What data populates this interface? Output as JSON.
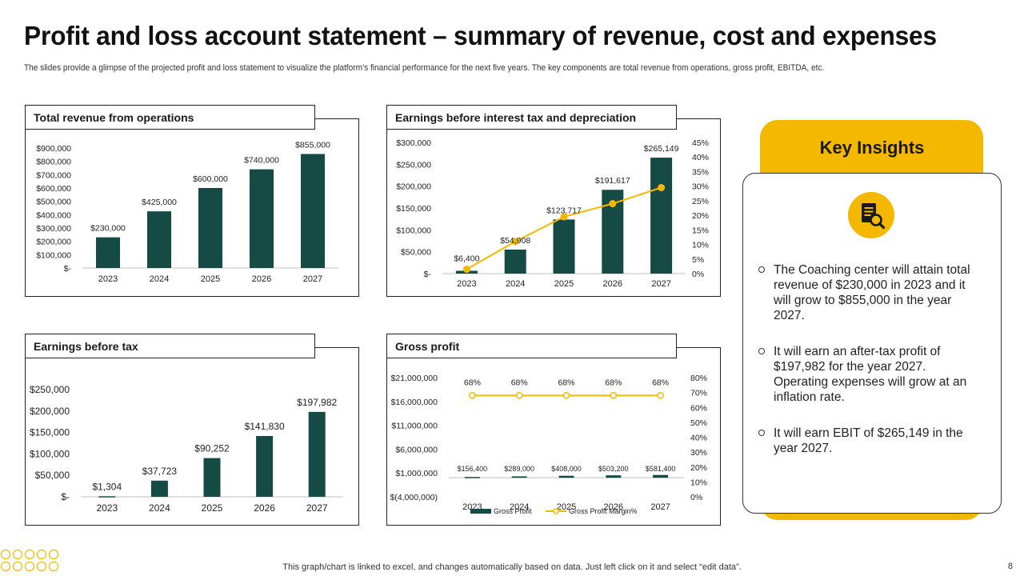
{
  "title": "Profit and loss account statement – summary of revenue, cost and expenses",
  "subtitle": "The slides provide a glimpse of the projected profit and loss statement to visualize the platform’s financial performance for the next five years. The key components are total revenue from operations, gross profit, EBITDA,  etc.",
  "colors": {
    "bar": "#154a45",
    "accent": "#f5b800",
    "line": "#f5b800",
    "axis": "#bfbfbf"
  },
  "chart_data": [
    {
      "id": "revenue",
      "type": "bar",
      "title": "Total revenue from operations",
      "categories": [
        "2023",
        "2024",
        "2025",
        "2026",
        "2027"
      ],
      "values": [
        230000,
        425000,
        600000,
        740000,
        855000
      ],
      "value_labels": [
        "$230,000",
        "$425,000",
        "$600,000",
        "$740,000",
        "$855,000"
      ],
      "ylim": [
        0,
        900000
      ],
      "y_ticks": [
        0,
        100000,
        200000,
        300000,
        400000,
        500000,
        600000,
        700000,
        800000,
        900000
      ],
      "y_tick_labels": [
        "$-",
        "$100,000",
        "$200,000",
        "$300,000",
        "$400,000",
        "$500,000",
        "$600,000",
        "$700,000",
        "$800,000",
        "$900,000"
      ]
    },
    {
      "id": "ebitda",
      "type": "bar+line",
      "title": "Earnings before interest tax and depreciation",
      "categories": [
        "2023",
        "2024",
        "2025",
        "2026",
        "2027"
      ],
      "values": [
        6400,
        54908,
        123717,
        191617,
        265149
      ],
      "value_labels": [
        "$6,400",
        "$54,908",
        "$123,717",
        "$191,617",
        "$265,149"
      ],
      "ylim": [
        0,
        300000
      ],
      "y_ticks": [
        0,
        50000,
        100000,
        150000,
        200000,
        250000,
        300000
      ],
      "y_tick_labels": [
        "$-",
        "$50,000",
        "$100,000",
        "$150,000",
        "$200,000",
        "$250,000",
        "$300,000"
      ],
      "margin_pct": [
        1.5,
        11,
        19.5,
        24,
        29.5
      ],
      "y2lim": [
        0,
        45
      ],
      "y2_ticks": [
        0,
        5,
        10,
        15,
        20,
        25,
        30,
        35,
        40,
        45
      ],
      "y2_tick_labels": [
        "0%",
        "5%",
        "10%",
        "15%",
        "20%",
        "25%",
        "30%",
        "35%",
        "40%",
        "45%"
      ]
    },
    {
      "id": "ebt",
      "type": "bar",
      "title": "Earnings before tax",
      "categories": [
        "2023",
        "2024",
        "2025",
        "2026",
        "2027"
      ],
      "values": [
        1304,
        37723,
        90252,
        141830,
        197982
      ],
      "value_labels": [
        "$1,304",
        "$37,723",
        "$90,252",
        "$141,830",
        "$197,982"
      ],
      "ylim": [
        0,
        250000
      ],
      "y_ticks": [
        0,
        50000,
        100000,
        150000,
        200000,
        250000
      ],
      "y_tick_labels": [
        "$-",
        "$50,000",
        "$100,000",
        "$150,000",
        "$200,000",
        "$250,000"
      ]
    },
    {
      "id": "gross",
      "type": "bar+line",
      "title": "Gross profit",
      "categories": [
        "2023",
        "2024",
        "2025",
        "2026",
        "2027"
      ],
      "values": [
        156400,
        289000,
        408000,
        503200,
        581400
      ],
      "value_labels": [
        "$156,400",
        "$289,000",
        "$408,000",
        "$503,200",
        "$581,400"
      ],
      "ylim": [
        -4000000,
        21000000
      ],
      "y_ticks": [
        -4000000,
        1000000,
        6000000,
        11000000,
        16000000,
        21000000
      ],
      "y_tick_labels": [
        "$(4,000,000)",
        "$1,000,000",
        "$6,000,000",
        "$11,000,000",
        "$16,000,000",
        "$21,000,000"
      ],
      "margin_pct": [
        68,
        68,
        68,
        68,
        68
      ],
      "margin_labels": [
        "68%",
        "68%",
        "68%",
        "68%",
        "68%"
      ],
      "y2lim": [
        0,
        80
      ],
      "y2_ticks": [
        0,
        10,
        20,
        30,
        40,
        50,
        60,
        70,
        80
      ],
      "y2_tick_labels": [
        "0%",
        "10%",
        "20%",
        "30%",
        "40%",
        "50%",
        "60%",
        "70%",
        "80%"
      ],
      "legend": [
        "Gross Profit",
        "Gross Profit Margin%"
      ]
    }
  ],
  "insights": {
    "title": "Key Insights",
    "icon": "document-search-icon",
    "items": [
      "The Coaching center will attain total revenue of $230,000 in 2023 and it will grow to $855,000 in the year 2027.",
      "It will earn an after-tax profit of $197,982 for the year 2027. Operating expenses will grow at an inflation rate.",
      "It will earn EBIT of $265,149 in the year 2027."
    ]
  },
  "footer": "This graph/chart is linked to excel,  and changes automatically based on data. Just left click on it and select “edit data”.",
  "page_number": "8"
}
